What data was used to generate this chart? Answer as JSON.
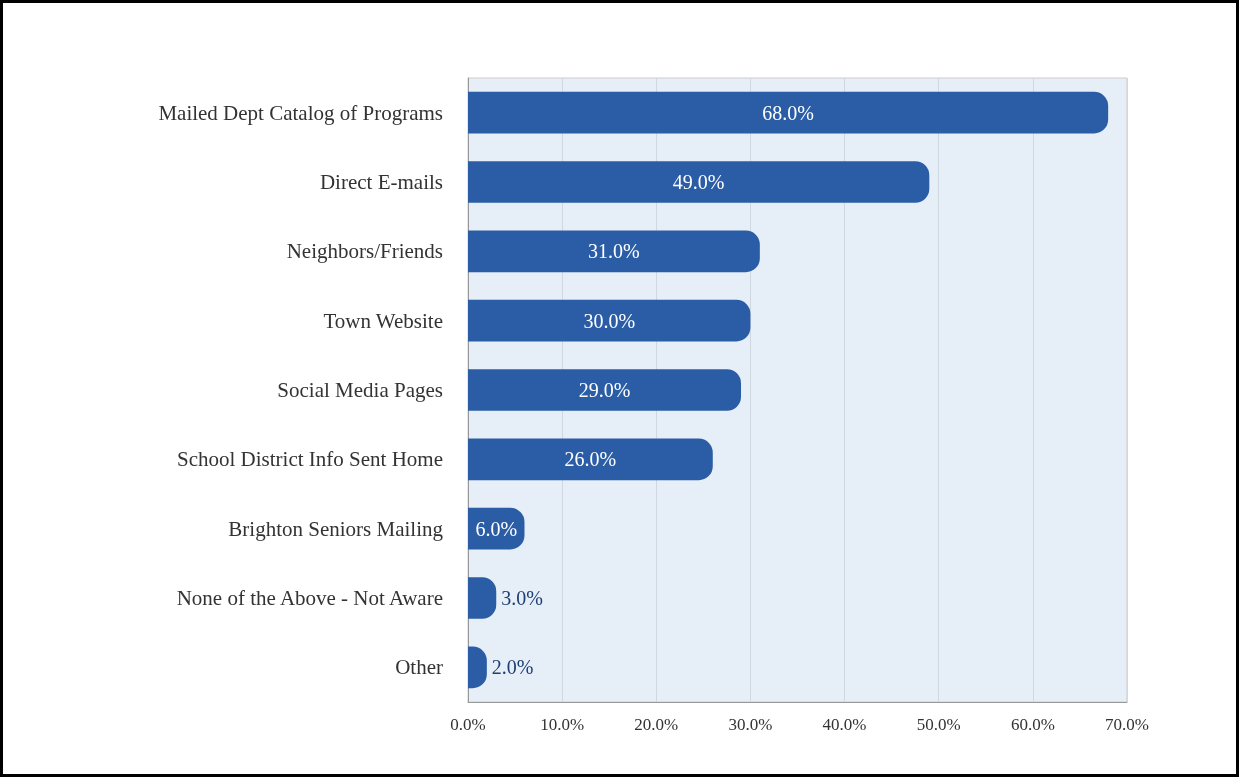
{
  "chart_data": {
    "type": "bar",
    "orientation": "horizontal",
    "categories": [
      "Mailed Dept Catalog of Programs",
      "Direct E-mails",
      "Neighbors/Friends",
      "Town Website",
      "Social Media Pages",
      "School District Info Sent Home",
      "Brighton Seniors Mailing",
      "None of the Above - Not Aware",
      "Other"
    ],
    "values": [
      68,
      49,
      31,
      30,
      29,
      26,
      6,
      3,
      2
    ],
    "value_labels": [
      "68.0%",
      "49.0%",
      "31.0%",
      "30.0%",
      "29.0%",
      "26.0%",
      "6.0%",
      "3.0%",
      "2.0%"
    ],
    "color": "#2b5da6",
    "xlim": [
      0,
      70
    ],
    "xticks": [
      {
        "value": 0,
        "label": "0.0%"
      },
      {
        "value": 10,
        "label": "10.0%"
      },
      {
        "value": 20,
        "label": "20.0%"
      },
      {
        "value": 30,
        "label": "30.0%"
      },
      {
        "value": 40,
        "label": "40.0%"
      },
      {
        "value": 50,
        "label": "50.0%"
      },
      {
        "value": 60,
        "label": "60.0%"
      },
      {
        "value": 70,
        "label": "70.0%"
      }
    ],
    "grid": "x"
  }
}
